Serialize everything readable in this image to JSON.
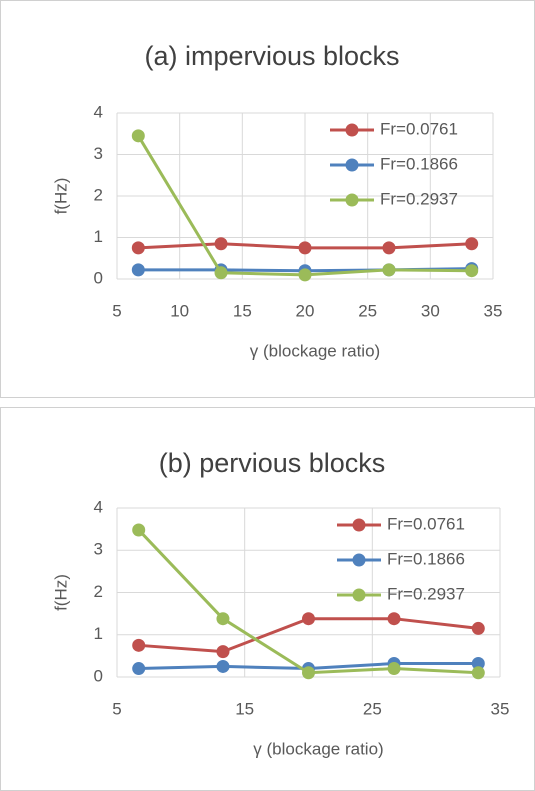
{
  "chart_data": [
    {
      "type": "line",
      "title": "(a) impervious blocks",
      "xlabel": "γ (blockage ratio)",
      "ylabel": "f(Hz)",
      "x": [
        6.7,
        13.3,
        20,
        26.7,
        33.3
      ],
      "series": [
        {
          "name": "Fr=0.0761",
          "color": "#c0504d",
          "values": [
            0.75,
            0.85,
            0.75,
            0.75,
            0.85
          ]
        },
        {
          "name": "Fr=0.1866",
          "color": "#4f81bd",
          "values": [
            0.22,
            0.22,
            0.2,
            0.22,
            0.25
          ]
        },
        {
          "name": "Fr=0.2937",
          "color": "#9bbb59",
          "values": [
            3.45,
            0.15,
            0.1,
            0.22,
            0.2
          ]
        }
      ],
      "xlim": [
        5,
        35
      ],
      "xticks": [
        5,
        10,
        15,
        20,
        25,
        30,
        35
      ],
      "ylim": [
        0,
        4
      ],
      "yticks": [
        0,
        1,
        2,
        3,
        4
      ],
      "grid": true,
      "legend": "upper-right"
    },
    {
      "type": "line",
      "title": "(b) pervious blocks",
      "xlabel": "γ (blockage ratio)",
      "ylabel": "f(Hz)",
      "x": [
        6.7,
        13.3,
        20,
        26.7,
        33.3
      ],
      "series": [
        {
          "name": "Fr=0.0761",
          "color": "#c0504d",
          "values": [
            0.75,
            0.6,
            1.38,
            1.38,
            1.15
          ]
        },
        {
          "name": "Fr=0.1866",
          "color": "#4f81bd",
          "values": [
            0.2,
            0.25,
            0.2,
            0.32,
            0.32
          ]
        },
        {
          "name": "Fr=0.2937",
          "color": "#9bbb59",
          "values": [
            3.48,
            1.38,
            0.1,
            0.2,
            0.1
          ]
        }
      ],
      "xlim": [
        5,
        35
      ],
      "xticks": [
        5,
        15,
        25,
        35
      ],
      "ylim": [
        0,
        4
      ],
      "yticks": [
        0,
        1,
        2,
        3,
        4
      ],
      "grid": true,
      "legend": "upper-right"
    }
  ]
}
